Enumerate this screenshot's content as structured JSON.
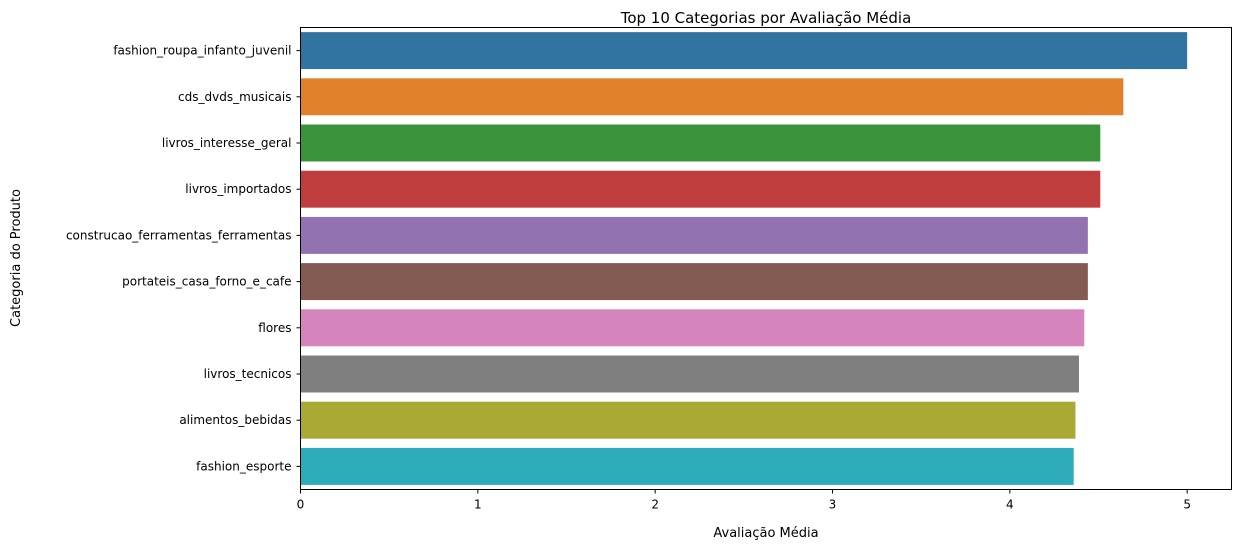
{
  "chart_data": {
    "type": "bar",
    "orientation": "horizontal",
    "title": "Top 10 Categorias por Avaliação Média",
    "xlabel": "Avaliação Média",
    "ylabel": "Categoria do Produto",
    "xlim": [
      0,
      5.25
    ],
    "xticks": [
      0,
      1,
      2,
      3,
      4,
      5
    ],
    "grid": false,
    "categories": [
      "fashion_roupa_infanto_juvenil",
      "cds_dvds_musicais",
      "livros_interesse_geral",
      "livros_importados",
      "construcao_ferramentas_ferramentas",
      "portateis_casa_forno_e_cafe",
      "flores",
      "livros_tecnicos",
      "alimentos_bebidas",
      "fashion_esporte"
    ],
    "values": [
      5.0,
      4.64,
      4.51,
      4.51,
      4.44,
      4.44,
      4.42,
      4.39,
      4.37,
      4.36
    ],
    "colors": [
      "#3274a1",
      "#e1812c",
      "#3a923a",
      "#c03d3e",
      "#9372b2",
      "#845b53",
      "#d684bd",
      "#7f7f7f",
      "#a9aa35",
      "#2eabb8"
    ]
  }
}
